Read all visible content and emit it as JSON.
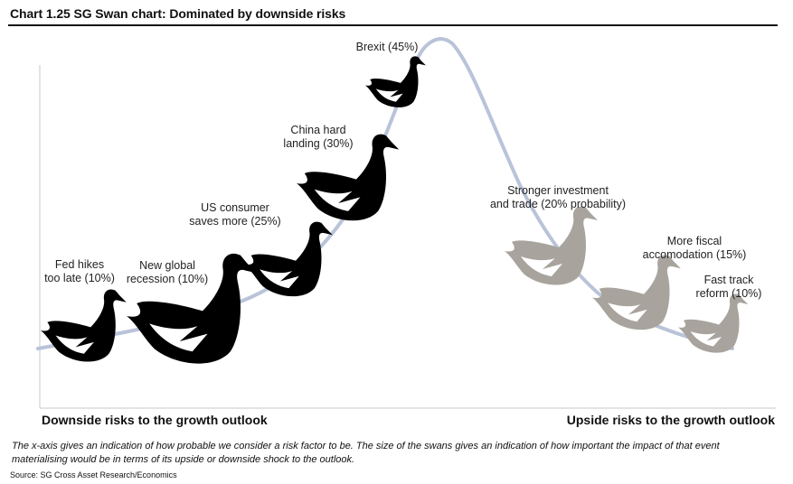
{
  "title": "Chart 1.25 SG Swan chart: Dominated by downside risks",
  "x_axis": {
    "left_label": "Downside risks to the growth outlook",
    "right_label": "Upside risks to the growth outlook"
  },
  "colors": {
    "downside": "#000000",
    "upside": "#a8a39d",
    "curve": "#b9c3d9"
  },
  "swans": [
    {
      "id": "fed-hikes",
      "lines": [
        "Fed hikes",
        "too late (10%)"
      ],
      "probability": 10,
      "side": "downside"
    },
    {
      "id": "global-recession",
      "lines": [
        "New global",
        "recession (10%)"
      ],
      "probability": 10,
      "side": "downside"
    },
    {
      "id": "us-consumer",
      "lines": [
        "US consumer",
        "saves more (25%)"
      ],
      "probability": 25,
      "side": "downside"
    },
    {
      "id": "china-landing",
      "lines": [
        "China hard",
        "landing (30%)"
      ],
      "probability": 30,
      "side": "downside"
    },
    {
      "id": "brexit",
      "lines": [
        "Brexit (45%)"
      ],
      "probability": 45,
      "side": "downside"
    },
    {
      "id": "stronger-investment",
      "lines": [
        "Stronger investment",
        "and trade (20% probability)"
      ],
      "probability": 20,
      "side": "upside"
    },
    {
      "id": "fiscal-accomodation",
      "lines": [
        "More fiscal",
        "accomodation (15%)"
      ],
      "probability": 15,
      "side": "upside"
    },
    {
      "id": "fast-track-reform",
      "lines": [
        "Fast track",
        "reform (10%)"
      ],
      "probability": 10,
      "side": "upside"
    }
  ],
  "note": "The x-axis gives an indication of how probable we consider a risk factor to be. The size of the swans gives an indication of how important the impact of that event materialising would be in terms of its upside or downside shock to the outlook.",
  "source": "Source: SG Cross Asset Research/Economics"
}
